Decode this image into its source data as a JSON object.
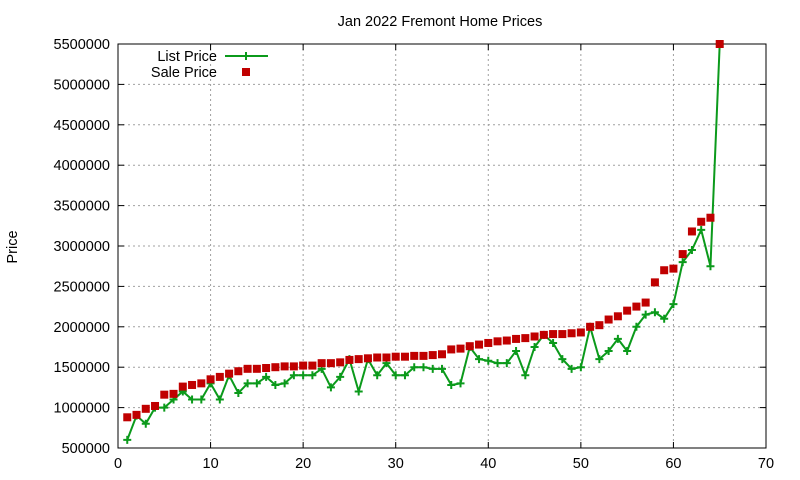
{
  "chart_data": {
    "type": "line",
    "title": "Jan 2022 Fremont Home Prices",
    "xlabel": "",
    "ylabel": "Price",
    "xlim": [
      0,
      70
    ],
    "ylim": [
      500000,
      5500000
    ],
    "xticks": [
      "0",
      "10",
      "20",
      "30",
      "40",
      "50",
      "60",
      "70"
    ],
    "yticks": [
      "500000",
      "1000000",
      "1500000",
      "2000000",
      "2500000",
      "3000000",
      "3500000",
      "4000000",
      "4500000",
      "5000000",
      "5500000"
    ],
    "grid": true,
    "legend_position": "top-left",
    "series": [
      {
        "name": "List Price",
        "style": "line-plus",
        "color": "#0b9a1b",
        "x": [
          1,
          2,
          3,
          4,
          5,
          6,
          7,
          8,
          9,
          10,
          11,
          12,
          13,
          14,
          15,
          16,
          17,
          18,
          19,
          20,
          21,
          22,
          23,
          24,
          25,
          26,
          27,
          28,
          29,
          30,
          31,
          32,
          33,
          34,
          35,
          36,
          37,
          38,
          39,
          40,
          41,
          42,
          43,
          44,
          45,
          46,
          47,
          48,
          49,
          50,
          51,
          52,
          53,
          54,
          55,
          56,
          57,
          58,
          59,
          60,
          61,
          62,
          63,
          64,
          65
        ],
        "values": [
          600000,
          900000,
          800000,
          1000000,
          1000000,
          1100000,
          1200000,
          1100000,
          1100000,
          1300000,
          1100000,
          1400000,
          1180000,
          1300000,
          1300000,
          1380000,
          1280000,
          1300000,
          1400000,
          1400000,
          1400000,
          1480000,
          1250000,
          1380000,
          1600000,
          1200000,
          1600000,
          1400000,
          1550000,
          1400000,
          1400000,
          1500000,
          1500000,
          1480000,
          1480000,
          1280000,
          1300000,
          1750000,
          1600000,
          1580000,
          1550000,
          1550000,
          1700000,
          1400000,
          1750000,
          1900000,
          1800000,
          1600000,
          1480000,
          1500000,
          2000000,
          1600000,
          1700000,
          1850000,
          1700000,
          2000000,
          2150000,
          2180000,
          2100000,
          2280000,
          2800000,
          2950000,
          3200000,
          2750000,
          5500000
        ]
      },
      {
        "name": "Sale Price",
        "style": "square",
        "color": "#c00000",
        "x": [
          1,
          2,
          3,
          4,
          5,
          6,
          7,
          8,
          9,
          10,
          11,
          12,
          13,
          14,
          15,
          16,
          17,
          18,
          19,
          20,
          21,
          22,
          23,
          24,
          25,
          26,
          27,
          28,
          29,
          30,
          31,
          32,
          33,
          34,
          35,
          36,
          37,
          38,
          39,
          40,
          41,
          42,
          43,
          44,
          45,
          46,
          47,
          48,
          49,
          50,
          51,
          52,
          53,
          54,
          55,
          56,
          57,
          58,
          59,
          60,
          61,
          62,
          63,
          64,
          65
        ],
        "values": [
          880000,
          910000,
          985000,
          1020000,
          1160000,
          1170000,
          1260000,
          1280000,
          1300000,
          1350000,
          1380000,
          1420000,
          1450000,
          1480000,
          1480000,
          1490000,
          1500000,
          1510000,
          1510000,
          1520000,
          1520000,
          1550000,
          1550000,
          1560000,
          1590000,
          1600000,
          1610000,
          1620000,
          1620000,
          1630000,
          1630000,
          1640000,
          1640000,
          1650000,
          1660000,
          1720000,
          1730000,
          1760000,
          1780000,
          1800000,
          1820000,
          1830000,
          1850000,
          1860000,
          1880000,
          1900000,
          1910000,
          1910000,
          1920000,
          1930000,
          2000000,
          2020000,
          2090000,
          2130000,
          2200000,
          2250000,
          2300000,
          2550000,
          2700000,
          2720000,
          2900000,
          3180000,
          3300000,
          3350000,
          5500000
        ]
      }
    ]
  }
}
